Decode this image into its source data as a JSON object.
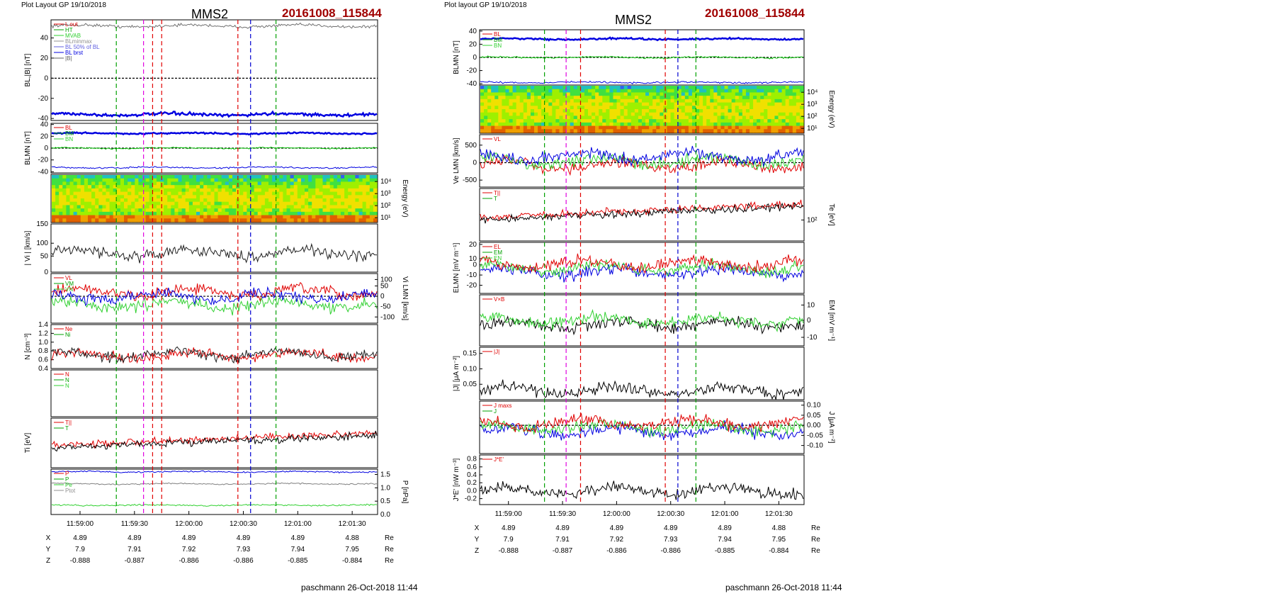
{
  "pages": [
    {
      "header": "Plot Layout GP 19/10/2018",
      "spacecraft": "MMS2",
      "event_id": "20161008_115844",
      "footer": "paschmann 26-Oct-2018 11:44",
      "time_ticks": [
        "11:59:00",
        "11:59:30",
        "12:00:00",
        "12:00:30",
        "12:01:00",
        "12:01:30"
      ],
      "ephemeris": [
        {
          "label": "X",
          "values": [
            "4.89",
            "4.89",
            "4.89",
            "4.89",
            "4.89",
            "4.88"
          ],
          "unit": "Re"
        },
        {
          "label": "Y",
          "values": [
            "7.9",
            "7.91",
            "7.92",
            "7.93",
            "7.94",
            "7.95"
          ],
          "unit": "Re"
        },
        {
          "label": "Z",
          "values": [
            "-0.888",
            "-0.887",
            "-0.886",
            "-0.886",
            "-0.885",
            "-0.884"
          ],
          "unit": "Re"
        }
      ]
    },
    {
      "header": "Plot layout GP 19/10/2018",
      "spacecraft": "MMS2",
      "event_id": "20161008_115844",
      "footer": "paschmann 26-Oct-2018 11:44",
      "time_ticks": [
        "11:59:00",
        "11:59:30",
        "12:00:00",
        "12:00:30",
        "12:01:00",
        "12:01:30"
      ],
      "ephemeris": [
        {
          "label": "X",
          "values": [
            "4.89",
            "4.89",
            "4.89",
            "4.89",
            "4.89",
            "4.88"
          ],
          "unit": "Re"
        },
        {
          "label": "Y",
          "values": [
            "7.9",
            "7.91",
            "7.92",
            "7.93",
            "7.94",
            "7.95"
          ],
          "unit": "Re"
        },
        {
          "label": "Z",
          "values": [
            "-0.888",
            "-0.887",
            "-0.886",
            "-0.886",
            "-0.885",
            "-0.884"
          ],
          "unit": "Re"
        }
      ]
    }
  ],
  "chart_data": [
    {
      "page": "left",
      "type": "line",
      "time_axis": {
        "range": [
          "11:58:44",
          "12:01:44"
        ],
        "ticks": [
          "11:59:00",
          "11:59:30",
          "12:00:00",
          "12:00:30",
          "12:01:00",
          "12:01:30"
        ]
      },
      "event_markers": [
        {
          "time": "11:59:20",
          "color": "#00a000"
        },
        {
          "time": "11:59:35",
          "color": "#e000e0"
        },
        {
          "time": "11:59:40",
          "color": "#e00000"
        },
        {
          "time": "11:59:45",
          "color": "#e00000"
        },
        {
          "time": "12:00:27",
          "color": "#e00000"
        },
        {
          "time": "12:00:34",
          "color": "#0000d0"
        },
        {
          "time": "12:00:48",
          "color": "#00a000"
        }
      ],
      "panels": [
        {
          "type": "line",
          "ylabel": "BL,|B| [nT]",
          "ylim": [
            -42,
            58
          ],
          "ticks": [
            "40",
            "20",
            "0",
            "-20",
            "-40"
          ],
          "zero_line": true,
          "legend": [
            "L out",
            "HT",
            "MVAB",
            "BLminmax",
            "BL 50% of BL",
            "BL brst",
            "|B|"
          ],
          "series": [
            {
              "name": "|B|",
              "level": 52
            },
            {
              "name": "BL",
              "level": -36
            }
          ]
        },
        {
          "type": "line",
          "ylabel": "BLMN [nT]",
          "ylim": [
            -42,
            42
          ],
          "ticks": [
            "40",
            "20",
            "0",
            "-20",
            "-40"
          ],
          "zero_line": true,
          "legend": [
            "BL",
            "BM",
            "BN"
          ],
          "series": [
            {
              "name": "BL",
              "level": 25
            },
            {
              "name": "BM",
              "level": 0
            },
            {
              "name": "BN",
              "level": -33
            }
          ]
        },
        {
          "type": "heatmap",
          "ylabel": "Energy (eV)",
          "ticks": [
            "10⁴",
            "10³",
            "10²",
            "10¹"
          ]
        },
        {
          "type": "line",
          "ylabel": "| Vi | [km/s]",
          "ylim": [
            0,
            150
          ],
          "ticks": [
            "150",
            "100",
            "50",
            "0"
          ],
          "series": [
            {
              "name": "|Vi|",
              "mean": 60
            }
          ]
        },
        {
          "type": "line",
          "ylabel": "Vi LMN [km/s]",
          "ylim": [
            -130,
            110
          ],
          "ticks": [
            "100",
            "50",
            "0",
            "-50",
            "-100"
          ],
          "zero_line": true,
          "legend": [
            "VL",
            "VM",
            "VN"
          ],
          "series": [
            {
              "name": "VL",
              "mean": 20
            },
            {
              "name": "VM",
              "mean": -40
            },
            {
              "name": "VN",
              "mean": 0
            }
          ]
        },
        {
          "type": "line",
          "ylabel": "N [cm⁻³]",
          "ylim": [
            0.4,
            1.4
          ],
          "ticks": [
            "1.4",
            "1.2",
            "1.0",
            "0.8",
            "0.6",
            "0.4"
          ],
          "legend": [
            "Ne",
            "Ni"
          ],
          "series": [
            {
              "name": "Ne",
              "mean": 0.7
            },
            {
              "name": "Ni",
              "mean": 0.72
            }
          ]
        },
        {
          "type": "line",
          "ylabel": "",
          "legend": [
            "N",
            "N",
            "N"
          ],
          "series": []
        },
        {
          "type": "line",
          "ylabel": "Ti [eV]",
          "legend": [
            "T||",
            "T"
          ],
          "series": [
            {
              "name": "T||"
            },
            {
              "name": "T"
            }
          ]
        },
        {
          "type": "line",
          "ylabel": "P [nPa]",
          "ylim": [
            0,
            1.7
          ],
          "ticks": [
            "1.5",
            "1.0",
            "0.5",
            "0.0"
          ],
          "legend": [
            "P",
            "P",
            "Pe",
            "Ptot"
          ],
          "series": [
            {
              "name": "Ptot",
              "level": 1.6
            },
            {
              "name": "Pi",
              "level": 1.15
            },
            {
              "name": "Pe",
              "level": 0.35
            }
          ]
        }
      ]
    },
    {
      "page": "right",
      "type": "line",
      "time_axis": {
        "range": [
          "11:58:44",
          "12:01:44"
        ],
        "ticks": [
          "11:59:00",
          "11:59:30",
          "12:00:00",
          "12:00:30",
          "12:01:00",
          "12:01:30"
        ]
      },
      "event_markers": [
        {
          "time": "11:59:20",
          "color": "#00a000"
        },
        {
          "time": "11:59:32",
          "color": "#e000e0"
        },
        {
          "time": "11:59:40",
          "color": "#e00000"
        },
        {
          "time": "12:00:27",
          "color": "#e00000"
        },
        {
          "time": "12:00:34",
          "color": "#0000d0"
        },
        {
          "time": "12:00:44",
          "color": "#00a000"
        }
      ],
      "panels": [
        {
          "type": "line",
          "ylabel": "BLMN [nT]",
          "ylim": [
            -42,
            42
          ],
          "ticks": [
            "40",
            "20",
            "0",
            "-20",
            "-40"
          ],
          "zero_line": true,
          "legend": [
            "BL",
            "BM",
            "BN"
          ],
          "series": [
            {
              "name": "BL",
              "level": 28
            },
            {
              "name": "BM",
              "level": 0
            },
            {
              "name": "BN",
              "level": -38
            }
          ]
        },
        {
          "type": "heatmap",
          "ylabel": "Energy (eV)",
          "ticks": [
            "10⁴",
            "10³",
            "10²",
            "10¹"
          ]
        },
        {
          "type": "line",
          "ylabel": "Ve LMN [km/s]",
          "ylim": [
            -700,
            800
          ],
          "ticks": [
            "500",
            "0",
            "-500"
          ],
          "zero_line": true,
          "legend": [
            "VL"
          ],
          "series": [
            {
              "name": "VL"
            },
            {
              "name": "VM"
            },
            {
              "name": "VN"
            }
          ]
        },
        {
          "type": "line",
          "ylabel": "Te [eV]",
          "ticks": [
            "10²"
          ],
          "legend": [
            "T||",
            "T"
          ],
          "series": [
            {
              "name": "T||"
            },
            {
              "name": "T"
            }
          ]
        },
        {
          "type": "line",
          "ylabel": "ELMN [mV m⁻¹]",
          "ylim": [
            -28,
            22
          ],
          "ticks": [
            "20",
            "10",
            "0",
            "-10",
            "-20"
          ],
          "legend": [
            "EL",
            "EM",
            "EN"
          ],
          "series": [
            {
              "name": "EL"
            },
            {
              "name": "EM"
            },
            {
              "name": "EN"
            }
          ]
        },
        {
          "type": "line",
          "ylabel": "EM [mV m⁻¹]",
          "ylim": [
            -15,
            15
          ],
          "ticks": [
            "10",
            "0",
            "-10"
          ],
          "legend": [
            "V×B"
          ],
          "series": [
            {
              "name": "V×B"
            },
            {
              "name": "EM"
            }
          ]
        },
        {
          "type": "line",
          "ylabel": "|J| [μA m⁻²]",
          "ylim": [
            0,
            0.17
          ],
          "ticks": [
            "0.15",
            "0.10",
            "0.05"
          ],
          "legend": [
            "|J|"
          ],
          "series": [
            {
              "name": "|J|",
              "mean": 0.03
            }
          ]
        },
        {
          "type": "line",
          "ylabel": "J [μA m⁻²]",
          "ylim": [
            -0.14,
            0.12
          ],
          "ticks": [
            "0.10",
            "0.05",
            "0.00",
            "-0.05",
            "-0.10"
          ],
          "zero_line": true,
          "legend": [
            "J maxs",
            "J"
          ],
          "series": [
            {
              "name": "JL"
            },
            {
              "name": "JM"
            },
            {
              "name": "JN"
            }
          ]
        },
        {
          "type": "line",
          "ylabel": "J*E' [nW m⁻³]",
          "ylim": [
            -0.35,
            0.9
          ],
          "ticks": [
            "0.8",
            "0.6",
            "0.4",
            "0.2",
            "0.0",
            "-0.2"
          ],
          "legend": [
            "J*E'"
          ],
          "series": [
            {
              "name": "J*E'",
              "mean": 0.0
            }
          ]
        }
      ]
    }
  ]
}
